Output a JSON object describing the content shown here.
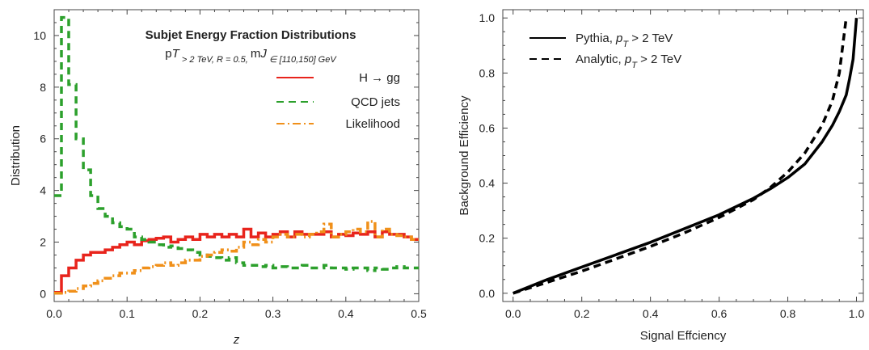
{
  "chart_data": [
    {
      "type": "line",
      "title": "Subjet Energy Fraction Distributions",
      "subtitle_parts": [
        "p",
        "T",
        " > 2 TeV, R = 0.5, ",
        "m",
        "J",
        " ∈ [110,150] GeV"
      ],
      "xlabel": "z",
      "ylabel": "Distribution",
      "xlim": [
        0,
        0.5
      ],
      "ylim": [
        -0.3,
        11
      ],
      "xticks": [
        "0.0",
        "0.1",
        "0.2",
        "0.3",
        "0.4",
        "0.5"
      ],
      "yticks": [
        "0",
        "2",
        "4",
        "6",
        "8",
        "10"
      ],
      "bin_width": 0.01,
      "grid": false,
      "legend_position": "top-right",
      "series": [
        {
          "name": "H → gg",
          "color": "#e8241c",
          "style": "solid",
          "values": [
            0.05,
            0.7,
            1.0,
            1.3,
            1.5,
            1.6,
            1.6,
            1.7,
            1.8,
            1.9,
            2.0,
            1.9,
            2.05,
            2.1,
            2.15,
            2.2,
            2.0,
            2.1,
            2.2,
            2.1,
            2.3,
            2.2,
            2.3,
            2.2,
            2.3,
            2.2,
            2.5,
            2.2,
            2.35,
            2.2,
            2.3,
            2.4,
            2.2,
            2.4,
            2.3,
            2.3,
            2.3,
            2.4,
            2.2,
            2.3,
            2.25,
            2.35,
            2.3,
            2.4,
            2.2,
            2.4,
            2.3,
            2.3,
            2.2,
            2.1
          ]
        },
        {
          "name": "QCD jets",
          "color": "#2ca02c",
          "style": "dashed",
          "values": [
            3.8,
            10.7,
            8.1,
            6.0,
            4.8,
            3.8,
            3.3,
            3.0,
            2.75,
            2.6,
            2.5,
            2.2,
            2.1,
            2.0,
            1.9,
            1.8,
            1.85,
            1.75,
            1.7,
            1.6,
            1.5,
            1.45,
            1.4,
            1.3,
            1.4,
            1.2,
            1.1,
            1.1,
            1.05,
            1.1,
            1.0,
            1.05,
            1.0,
            1.0,
            1.1,
            1.0,
            1.0,
            1.1,
            1.0,
            1.0,
            0.95,
            1.0,
            1.0,
            0.9,
            1.0,
            0.95,
            1.0,
            1.05,
            1.0,
            1.0
          ]
        },
        {
          "name": "Likelihood",
          "color": "#f0901a",
          "style": "dashdot",
          "values": [
            0.02,
            0.05,
            0.1,
            0.2,
            0.3,
            0.4,
            0.5,
            0.6,
            0.7,
            0.8,
            0.8,
            0.9,
            1.0,
            1.05,
            1.1,
            1.2,
            1.1,
            1.2,
            1.3,
            1.3,
            1.45,
            1.5,
            1.6,
            1.7,
            1.65,
            1.8,
            2.0,
            1.9,
            2.1,
            2.0,
            2.2,
            2.3,
            2.2,
            2.3,
            2.2,
            2.3,
            2.4,
            2.7,
            2.2,
            2.3,
            2.4,
            2.5,
            2.4,
            2.8,
            2.2,
            2.5,
            2.3,
            2.25,
            2.2,
            2.1
          ]
        }
      ]
    },
    {
      "type": "line",
      "xlabel": "Signal Effciency",
      "ylabel": "Background Efficiency",
      "xlim": [
        -0.03,
        1.02
      ],
      "ylim": [
        -0.03,
        1.03
      ],
      "xticks": [
        "0.0",
        "0.2",
        "0.4",
        "0.6",
        "0.8",
        "1.0"
      ],
      "yticks": [
        "0.0",
        "0.2",
        "0.4",
        "0.6",
        "0.8",
        "1.0"
      ],
      "grid": false,
      "legend_position": "top-left",
      "series": [
        {
          "name_parts": [
            "Pythia, ",
            "p",
            "T",
            " > 2 TeV"
          ],
          "color": "#000000",
          "style": "solid",
          "x": [
            0.0,
            0.1,
            0.2,
            0.3,
            0.4,
            0.5,
            0.6,
            0.7,
            0.75,
            0.8,
            0.85,
            0.9,
            0.93,
            0.95,
            0.97,
            0.98,
            0.99,
            1.0
          ],
          "y": [
            0.0,
            0.05,
            0.095,
            0.14,
            0.185,
            0.235,
            0.285,
            0.345,
            0.38,
            0.42,
            0.47,
            0.55,
            0.61,
            0.66,
            0.72,
            0.78,
            0.85,
            1.0
          ]
        },
        {
          "name_parts": [
            "Analytic, ",
            "p",
            "T",
            " > 2 TeV"
          ],
          "color": "#000000",
          "style": "dashed",
          "x": [
            0.0,
            0.1,
            0.2,
            0.3,
            0.4,
            0.5,
            0.6,
            0.7,
            0.75,
            0.8,
            0.85,
            0.9,
            0.93,
            0.95,
            0.97
          ],
          "y": [
            0.0,
            0.04,
            0.08,
            0.125,
            0.17,
            0.22,
            0.275,
            0.34,
            0.385,
            0.44,
            0.51,
            0.61,
            0.7,
            0.8,
            1.0
          ]
        }
      ]
    }
  ]
}
